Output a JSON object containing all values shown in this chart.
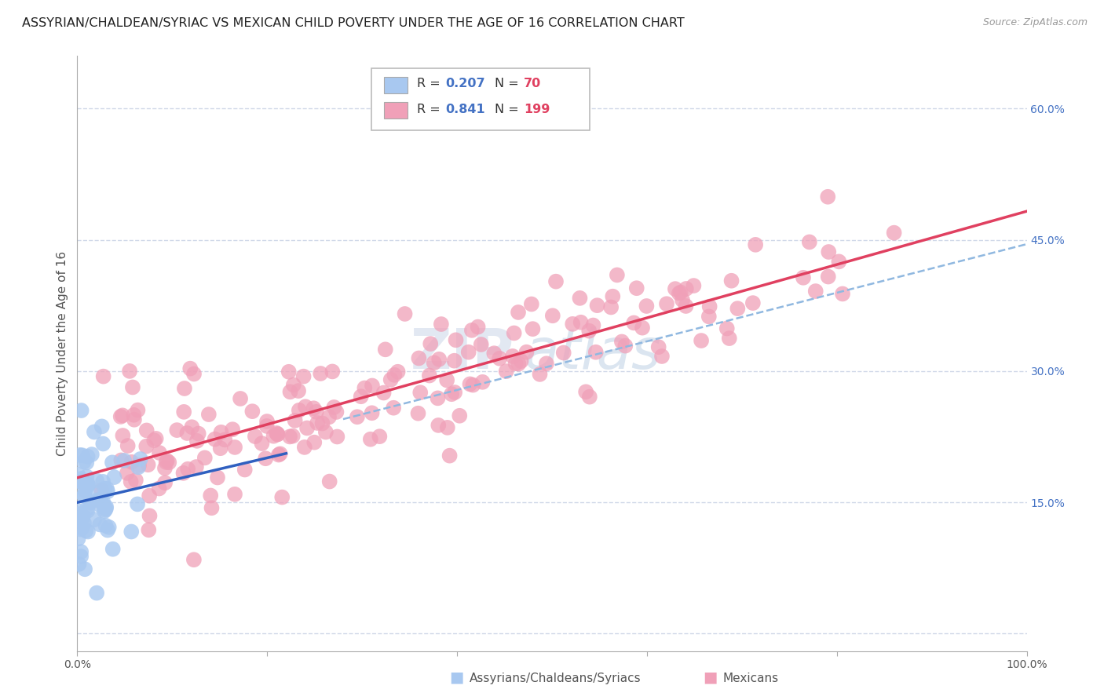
{
  "title": "ASSYRIAN/CHALDEAN/SYRIAC VS MEXICAN CHILD POVERTY UNDER THE AGE OF 16 CORRELATION CHART",
  "source": "Source: ZipAtlas.com",
  "ylabel": "Child Poverty Under the Age of 16",
  "y_ticks": [
    0.0,
    0.15,
    0.3,
    0.45,
    0.6
  ],
  "y_tick_labels": [
    "",
    "15.0%",
    "30.0%",
    "45.0%",
    "60.0%"
  ],
  "x_range": [
    0.0,
    1.0
  ],
  "y_range": [
    -0.02,
    0.66
  ],
  "blue_scatter_color": "#a8c8f0",
  "pink_scatter_color": "#f0a0b8",
  "blue_line_color": "#3060c0",
  "pink_line_color": "#e04060",
  "dashed_line_color": "#90b8e0",
  "background_color": "#ffffff",
  "grid_color": "#d0d8e8",
  "watermark_zip": "ZIP",
  "watermark_atlas": "atlas",
  "blue_R": 0.207,
  "pink_R": 0.841,
  "blue_N": 70,
  "pink_N": 199,
  "legend_R_color": "#4472c4",
  "legend_N_color": "#e04060",
  "title_fontsize": 11.5,
  "source_fontsize": 9,
  "axis_label_fontsize": 11,
  "tick_fontsize": 10,
  "ytick_color": "#4472c4",
  "xtick_color": "#555555"
}
